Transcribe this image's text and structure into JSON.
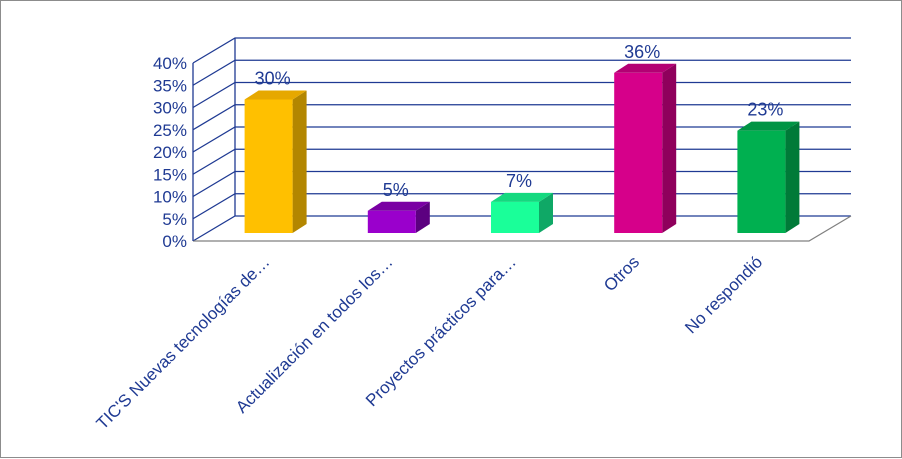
{
  "chart_data": {
    "type": "bar",
    "categories": [
      "TIC'S Nuevas tecnologías de…",
      "Actualización en todos los…",
      "Proyectos prácticos para…",
      "Otros",
      "No respondió"
    ],
    "values": [
      30,
      5,
      7,
      36,
      23
    ],
    "data_labels": [
      "30%",
      "5%",
      "7%",
      "36%",
      "23%"
    ],
    "ylim": [
      0,
      40
    ],
    "y_ticks": [
      "0%",
      "5%",
      "10%",
      "15%",
      "20%",
      "25%",
      "30%",
      "35%",
      "40%"
    ],
    "grid": true,
    "style": "3d-column",
    "colors": {
      "bars": [
        "#ffc000",
        "#9a00cc",
        "#1aff99",
        "#d6008a",
        "#00b050"
      ],
      "bars_side": [
        "#b38600",
        "#5c0080",
        "#0fa866",
        "#8f005c",
        "#007a38"
      ],
      "bars_top": [
        "#e6a800",
        "#7a00a3",
        "#14d97f",
        "#b30073",
        "#009444"
      ],
      "grid": "#1f3a93",
      "axis": "#808080",
      "text": "#1f3a93"
    }
  }
}
